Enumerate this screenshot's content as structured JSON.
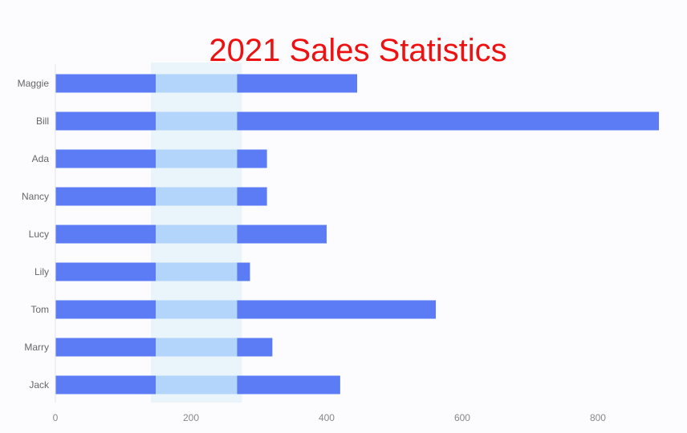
{
  "chart_data": {
    "type": "bar",
    "orientation": "horizontal",
    "title": "2021 Sales Statistics",
    "categories": [
      "Maggie",
      "Bill",
      "Ada",
      "Nancy",
      "Lucy",
      "Lily",
      "Tom",
      "Marry",
      "Jack"
    ],
    "values": [
      445,
      890,
      312,
      312,
      400,
      287,
      561,
      320,
      420
    ],
    "xlim": [
      0,
      890
    ],
    "x_ticks": [
      0,
      200,
      400,
      600,
      800
    ],
    "highlight_band": [
      148,
      268
    ],
    "grid": false,
    "legend": "none",
    "colors": {
      "bar": "#5b7cf5",
      "highlight": "#b3d4fb",
      "band": "#d9ecf8",
      "title": "#ee1111",
      "axis": "#888888",
      "label": "#666666"
    }
  }
}
